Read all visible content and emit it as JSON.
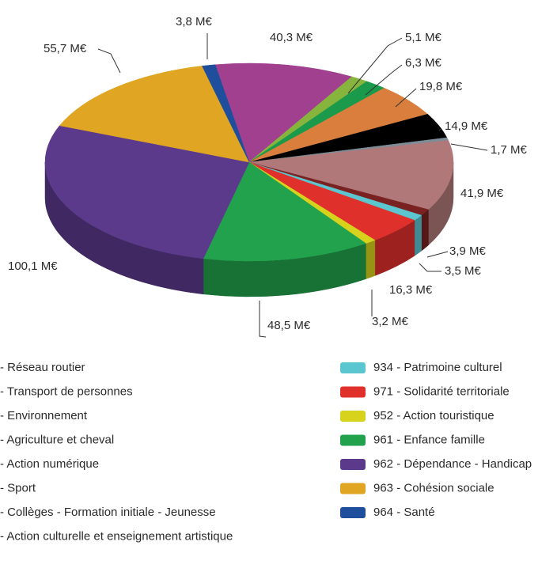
{
  "chart_data": {
    "type": "pie",
    "categories": [
      "- Réseau routier",
      "- Transport de personnes",
      "- Environnement",
      "- Agriculture et cheval",
      "- Action numérique",
      "- Sport",
      "- Collèges - Formation initiale - Jeunesse",
      "- Action culturelle et enseignement artistique",
      "934 - Patrimoine culturel",
      "971 - Solidarité territoriale",
      "952 - Action touristique",
      "961 - Enfance famille",
      "962 - Dépendance - Handicap",
      "963 - Cohésion sociale",
      "964 - Santé"
    ],
    "values": [
      40.3,
      5.1,
      6.3,
      19.8,
      14.9,
      1.7,
      41.9,
      3.9,
      3.5,
      16.3,
      3.2,
      48.5,
      100.1,
      55.7,
      3.8
    ],
    "value_labels": [
      "40,3 M€",
      "5,1 M€",
      "6,3 M€",
      "19,8 M€",
      "14,9 M€",
      "1,7 M€",
      "41,9 M€",
      "3,9 M€",
      "3,5 M€",
      "16,3 M€",
      "3,2 M€",
      "48,5 M€",
      "100,1 M€",
      "55,7 M€",
      "3,8 M€"
    ],
    "colors": [
      "#a0408f",
      "#86b43c",
      "#1a9a4a",
      "#d97e3c",
      "#000000",
      "#7d8c96",
      "#b07878",
      "#7a2222",
      "#5bc6d0",
      "#e0302c",
      "#d7d21c",
      "#22a24c",
      "#5b3a8c",
      "#e0a522",
      "#1f4e9c"
    ]
  }
}
